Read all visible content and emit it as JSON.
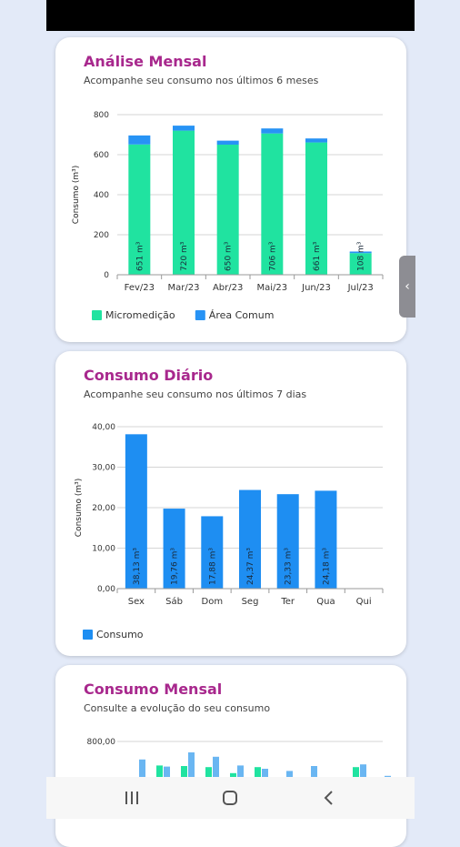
{
  "colors": {
    "micromedicao": "#20e3a0",
    "area_comum": "#2793f5",
    "consumo": "#1e8ef2",
    "title": "#a8288d"
  },
  "card1": {
    "title": "Análise Mensal",
    "subtitle": "Acompanhe seu consumo nos últimos 6 meses",
    "chart_data": {
      "type": "bar",
      "stacked": true,
      "categories": [
        "Fev/23",
        "Mar/23",
        "Abr/23",
        "Mai/23",
        "Jun/23",
        "Jul/23"
      ],
      "series": [
        {
          "name": "Micromedição",
          "values": [
            651,
            720,
            650,
            706,
            661,
            108
          ]
        },
        {
          "name": "Área Comum",
          "values": [
            45,
            25,
            20,
            25,
            20,
            8
          ]
        }
      ],
      "data_labels": [
        "651 m³",
        "720 m³",
        "650 m³",
        "706 m³",
        "661 m³",
        "108 m³"
      ],
      "ylabel": "Consumo (m³)",
      "ylim": [
        0,
        800
      ],
      "yticks": [
        "0",
        "200",
        "400",
        "600",
        "800"
      ],
      "grid": true,
      "legend": "bottom-left"
    }
  },
  "card2": {
    "title": "Consumo Diário",
    "subtitle": "Acompanhe seu consumo nos últimos 7 dias",
    "chart_data": {
      "type": "bar",
      "categories": [
        "Sex",
        "Sáb",
        "Dom",
        "Seg",
        "Ter",
        "Qua",
        "Qui"
      ],
      "series": [
        {
          "name": "Consumo",
          "values": [
            38.13,
            19.76,
            17.88,
            24.37,
            23.33,
            24.18,
            null
          ]
        }
      ],
      "data_labels": [
        "38,13 m³",
        "19,76 m³",
        "17,88 m³",
        "24,37 m³",
        "23,33 m³",
        "24,18 m³",
        ""
      ],
      "ylabel": "Consumo (m³)",
      "ylim": [
        0,
        40
      ],
      "yticks": [
        "0,00",
        "10,00",
        "20,00",
        "30,00",
        "40,00"
      ],
      "grid": true,
      "legend": "bottom-left"
    }
  },
  "card3": {
    "title": "Consumo Mensal",
    "subtitle": "Consulte a evolução do seu consumo",
    "chart_data": {
      "type": "bar",
      "ytick_top": "800,00",
      "ylim": [
        0,
        800
      ],
      "series": [
        {
          "values": [
            30,
            360,
            350,
            330,
            220,
            330,
            0,
            0,
            120,
            330,
            150
          ]
        },
        {
          "values": [
            470,
            340,
            600,
            520,
            360,
            300,
            260,
            350,
            90,
            380,
            170
          ]
        }
      ]
    }
  }
}
